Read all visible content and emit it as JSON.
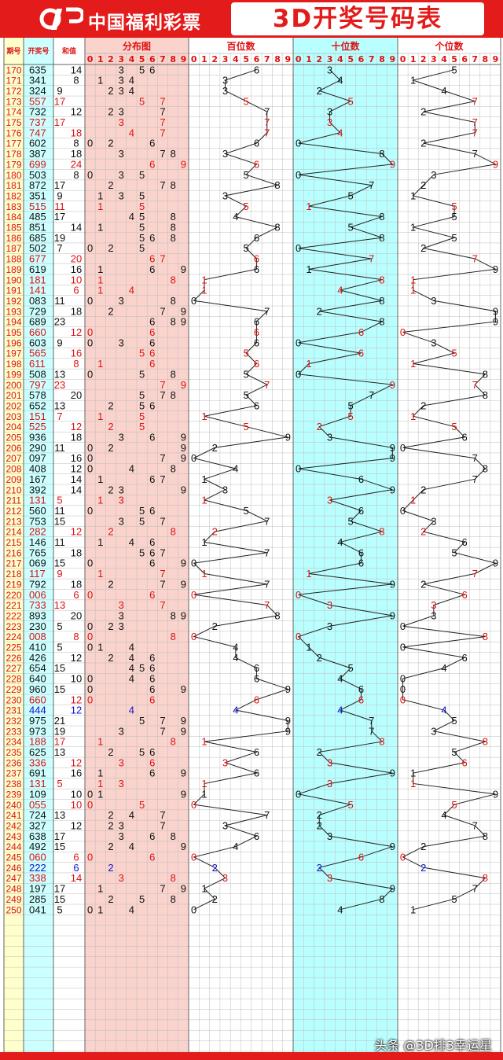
{
  "header": {
    "brand": "中国福利彩票",
    "title": "3D开奖号码表",
    "logo_icon": "lottery-logo-icon",
    "colors": {
      "brand_red": "#e41b1b",
      "white": "#ffffff"
    }
  },
  "table": {
    "col_headers": {
      "issue": "期号",
      "number": "开奖号",
      "sum": "和值"
    },
    "section_headers": {
      "distribution": "分布图",
      "hundreds": "百位数",
      "tens": "十位数",
      "units": "个位数"
    },
    "digit_labels": [
      "0",
      "1",
      "2",
      "3",
      "4",
      "5",
      "6",
      "7",
      "8",
      "9"
    ]
  },
  "chart_data": {
    "type": "table",
    "title": "3D开奖号码表",
    "columns": [
      "期号",
      "开奖号",
      "和值",
      "分布图",
      "百位数",
      "十位数",
      "个位数"
    ],
    "issues": [
      "170",
      "171",
      "172",
      "173",
      "174",
      "175",
      "176",
      "177",
      "178",
      "179",
      "180",
      "181",
      "182",
      "183",
      "184",
      "185",
      "186",
      "187",
      "188",
      "189",
      "190",
      "191",
      "192",
      "193",
      "194",
      "195",
      "196",
      "197",
      "198",
      "199",
      "200",
      "201",
      "202",
      "203",
      "204",
      "205",
      "206",
      "207",
      "208",
      "209",
      "210",
      "211",
      "212",
      "213",
      "214",
      "215",
      "216",
      "217",
      "218",
      "219",
      "220",
      "221",
      "222",
      "223",
      "224",
      "225",
      "226",
      "227",
      "228",
      "229",
      "230",
      "231",
      "232",
      "233",
      "234",
      "235",
      "236",
      "237",
      "238",
      "239",
      "240",
      "241",
      "242",
      "243",
      "244",
      "245",
      "246",
      "247",
      "248",
      "249",
      "250"
    ],
    "numbers": [
      "635",
      "341",
      "324",
      "557",
      "732",
      "737",
      "747",
      "602",
      "387",
      "699",
      "503",
      "872",
      "351",
      "515",
      "485",
      "851",
      "685",
      "502",
      "677",
      "619",
      "181",
      "141",
      "083",
      "729",
      "689",
      "660",
      "603",
      "565",
      "611",
      "508",
      "797",
      "578",
      "652",
      "151",
      "525",
      "936",
      "290",
      "097",
      "408",
      "167",
      "392",
      "131",
      "560",
      "753",
      "282",
      "146",
      "765",
      "069",
      "117",
      "792",
      "006",
      "733",
      "893",
      "230",
      "008",
      "410",
      "426",
      "654",
      "640",
      "960",
      "660",
      "444",
      "975",
      "973",
      "188",
      "625",
      "336",
      "691",
      "131",
      "109",
      "055",
      "724",
      "327",
      "638",
      "492",
      "060",
      "222",
      "338",
      "197",
      "285",
      "041"
    ],
    "sums": [
      "14",
      "8",
      "9",
      "17",
      "12",
      "17",
      "18",
      "8",
      "18",
      "24",
      "8",
      "17",
      "9",
      "11",
      "17",
      "14",
      "19",
      "7",
      "20",
      "16",
      "10",
      "6",
      "11",
      "18",
      "23",
      "12",
      "9",
      "16",
      "8",
      "13",
      "23",
      "20",
      "13",
      "7",
      "12",
      "18",
      "11",
      "16",
      "12",
      "14",
      "14",
      "5",
      "11",
      "15",
      "12",
      "11",
      "18",
      "15",
      "9",
      "18",
      "6",
      "13",
      "20",
      "5",
      "8",
      "5",
      "12",
      "15",
      "10",
      "15",
      "12",
      "12",
      "21",
      "19",
      "17",
      "13",
      "12",
      "16",
      "5",
      "10",
      "10",
      "13",
      "12",
      "17",
      "15",
      "6",
      "6",
      "14",
      "17",
      "15",
      "5"
    ],
    "highlight_rule": "red = number with repeated digit, blue = triple (豹子)",
    "colors": {
      "normal": "#111111",
      "repeat": "#dd1111",
      "triple": "#1010cc",
      "dist_bg": "#f9d3cc",
      "tens_bg": "#b9ffff",
      "issue_bg": "#ffffcc",
      "number_bg": "#ccffff",
      "grid": "#bdbdbd"
    }
  },
  "watermark": "头条 @3D排3幸运星"
}
